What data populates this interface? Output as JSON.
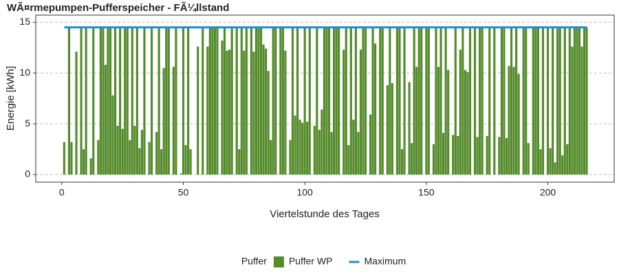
{
  "chart_data": {
    "type": "bar",
    "title": "WÃ¤rmepumpen-Pufferspeicher - FÃ¼llstand",
    "xlabel": "Viertelstunde des Tages",
    "ylabel": "Energie [kWh]",
    "xlim": [
      -10.7,
      227.3
    ],
    "ylim": [
      -0.75,
      15.7
    ],
    "xticks": [
      0,
      50,
      100,
      150,
      200
    ],
    "yticks": [
      0,
      5,
      10,
      15
    ],
    "grid": true,
    "legend_title": "Puffer",
    "legend": "bottom",
    "series": [
      {
        "name": "Puffer WP",
        "type": "bar",
        "color": "#548b2b",
        "x": [
          1,
          2,
          3,
          4,
          5,
          6,
          7,
          8,
          9,
          10,
          11,
          12,
          13,
          14,
          15,
          16,
          17,
          18,
          19,
          20,
          21,
          22,
          23,
          24,
          25,
          26,
          27,
          28,
          29,
          30,
          31,
          32,
          33,
          34,
          35,
          36,
          37,
          38,
          39,
          40,
          41,
          42,
          43,
          44,
          45,
          46,
          47,
          48,
          49,
          50,
          51,
          52,
          53,
          54,
          55,
          56,
          57,
          58,
          59,
          60,
          61,
          62,
          63,
          64,
          65,
          66,
          67,
          68,
          69,
          70,
          71,
          72,
          73,
          74,
          75,
          76,
          77,
          78,
          79,
          80,
          81,
          82,
          83,
          84,
          85,
          86,
          87,
          88,
          89,
          90,
          91,
          92,
          93,
          94,
          95,
          96,
          97,
          98,
          99,
          100,
          101,
          102,
          103,
          104,
          105,
          106,
          107,
          108,
          109,
          110,
          111,
          112,
          113,
          114,
          115,
          116,
          117,
          118,
          119,
          120,
          121,
          122,
          123,
          124,
          125,
          126,
          127,
          128,
          129,
          130,
          131,
          132,
          133,
          134,
          135,
          136,
          137,
          138,
          139,
          140,
          141,
          142,
          143,
          144,
          145,
          146,
          147,
          148,
          149,
          150,
          151,
          152,
          153,
          154,
          155,
          156,
          157,
          158,
          159,
          160,
          161,
          162,
          163,
          164,
          165,
          166,
          167,
          168,
          169,
          170,
          171,
          172,
          173,
          174,
          175,
          176,
          177,
          178,
          179,
          180,
          181,
          182,
          183,
          184,
          185,
          186,
          187,
          188,
          189,
          190,
          191,
          192,
          193,
          194,
          195,
          196,
          197,
          198,
          199,
          200,
          201,
          202,
          203,
          204,
          205,
          206,
          207,
          208,
          209,
          210,
          211,
          212,
          213,
          214,
          215,
          216
        ],
        "values": [
          3.2,
          0,
          14.5,
          3.2,
          0,
          12.1,
          0,
          14.5,
          2.5,
          14.5,
          0,
          1.6,
          14.5,
          0,
          3.4,
          14.5,
          14.5,
          10.8,
          14.5,
          14.5,
          7.8,
          14.5,
          4.8,
          14.5,
          4.5,
          14.5,
          14.5,
          3.4,
          14.5,
          4.8,
          14.5,
          2.6,
          4.4,
          14.5,
          0,
          3.2,
          14.5,
          0,
          4.2,
          14.5,
          2.5,
          10.5,
          14.5,
          14.5,
          0,
          10.6,
          14.5,
          0,
          0.1,
          14.5,
          2.9,
          14.5,
          2.5,
          0,
          0,
          12.6,
          0,
          14.5,
          0,
          12.6,
          14.5,
          14.5,
          14.5,
          14.5,
          0,
          13.2,
          14.5,
          12.2,
          12.3,
          14.5,
          0,
          14.5,
          2.5,
          14.5,
          12.2,
          14.5,
          0,
          14.5,
          12.1,
          14.5,
          14.5,
          14.5,
          12.8,
          12.4,
          10.2,
          3.4,
          14.5,
          14.5,
          0,
          14.5,
          14.5,
          12.2,
          0,
          3.4,
          14.5,
          5.8,
          14.5,
          5.4,
          5.1,
          14.5,
          5.2,
          14.5,
          0,
          4.8,
          14.5,
          4.4,
          6.4,
          14.5,
          14.5,
          14.5,
          4.2,
          14.5,
          14.5,
          14.5,
          0,
          12.3,
          14.5,
          2.9,
          14.5,
          5.4,
          14.5,
          4.2,
          12.3,
          14.5,
          14.5,
          0,
          5.9,
          14.5,
          12.9,
          0,
          14.5,
          14.5,
          0,
          8.8,
          14.5,
          9.0,
          0,
          14.5,
          14.5,
          2.5,
          14.5,
          0,
          9.1,
          3.1,
          14.5,
          10.6,
          14.5,
          14.5,
          0,
          14.5,
          14.5,
          0,
          3.0,
          14.5,
          10.6,
          14.5,
          4.1,
          14.5,
          10.3,
          0,
          3.9,
          14.5,
          3.8,
          12.3,
          14.5,
          10.3,
          10.1,
          14.5,
          0,
          14.5,
          3.7,
          14.5,
          14.5,
          0,
          3.8,
          14.5,
          0,
          14.5,
          0,
          3.7,
          14.5,
          14.5,
          3.6,
          10.7,
          14.5,
          10.6,
          14.5,
          9.9,
          0,
          14.5,
          14.5,
          3.1,
          0,
          14.5,
          14.5,
          14.5,
          2.5,
          14.5,
          0,
          14.5,
          2.6,
          14.5,
          1.2,
          14.5,
          14.5,
          1.9,
          14.5,
          3.0,
          14.5,
          12.6,
          14.5,
          14.5,
          14.5,
          12.6,
          14.5,
          14.5
        ]
      },
      {
        "name": "Maximum",
        "type": "line",
        "color": "#1b8fd2",
        "x": [
          1,
          216
        ],
        "values": [
          14.5,
          14.5
        ]
      }
    ]
  }
}
